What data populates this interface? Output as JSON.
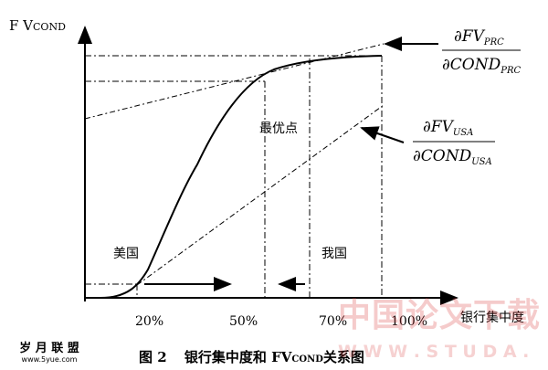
{
  "chart_data": {
    "type": "line",
    "ylabel_main": "F V",
    "ylabel_sub": "COND",
    "xlabel": "银行集中度",
    "x_ticks": [
      "20%",
      "50%",
      "70%",
      "100%"
    ],
    "region_labels": {
      "us": "美国",
      "optimal": "最优点",
      "cn": "我国"
    },
    "annotations": {
      "prc": {
        "num": "∂FV",
        "num_sub": "PRC",
        "den": "∂COND",
        "den_sub": "PRC"
      },
      "usa": {
        "num": "∂FV",
        "num_sub": "USA",
        "den": "∂COND",
        "den_sub": "USA"
      }
    },
    "curve": {
      "x": [
        0.15,
        0.2,
        0.3,
        0.4,
        0.5,
        0.55,
        0.6,
        0.7,
        0.8,
        0.9,
        1.0
      ],
      "y": [
        0.0,
        0.07,
        0.32,
        0.6,
        0.8,
        0.88,
        0.93,
        0.97,
        0.99,
        1.0,
        1.0
      ]
    },
    "tangent_prc": {
      "x": [
        0.0,
        1.0
      ],
      "y": [
        0.78,
        1.04
      ]
    },
    "tangent_usa": {
      "x": [
        0.2,
        1.0
      ],
      "y": [
        0.02,
        0.8
      ]
    },
    "optimal_point": {
      "x": 0.55,
      "y": 0.9
    },
    "us_point": {
      "x": 0.2,
      "y": 0.07
    },
    "cn_point": {
      "x": 0.7,
      "y": 0.97
    },
    "caption": {
      "fig": "图 2",
      "text_main": "银行集中度和 FV",
      "text_sub": "COND",
      "text_tail": "关系图"
    }
  },
  "watermark": {
    "left_cn": "岁 月 联 盟",
    "left_en": "www.5yue.com",
    "right_cn": "中国论文下载",
    "right_en": "W W W . S T U D A ."
  }
}
